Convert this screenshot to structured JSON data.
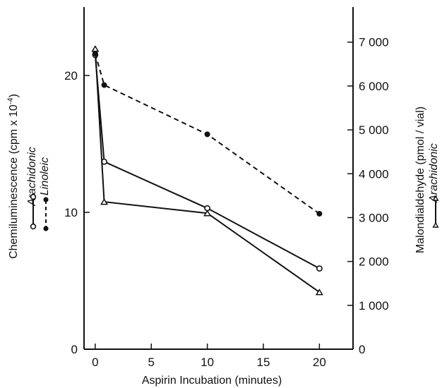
{
  "chart_data": {
    "type": "line",
    "xlabel": "Aspirin Incubation (minutes)",
    "ylabel_left": "Chemiluminescence (cpm x 10",
    "ylabel_left_exp": "-4",
    "ylabel_left_close": ")",
    "ylabel_right": "Malondialdehyde (pmol / vial)",
    "xlim": [
      -1,
      23
    ],
    "ylim_left": [
      0,
      25
    ],
    "ylim_right": [
      0,
      7800
    ],
    "x_ticks": [
      0,
      5,
      10,
      15,
      20
    ],
    "y_left_ticks": [
      0,
      10,
      20
    ],
    "y_right_ticks": [
      0,
      1000,
      2000,
      3000,
      4000,
      5000,
      6000,
      7000
    ],
    "x_tick_labels": [
      "0",
      "5",
      "10",
      "15",
      "20"
    ],
    "y_left_tick_labels": [
      "0",
      "10",
      "20"
    ],
    "y_right_tick_labels": [
      "0",
      "1 000",
      "2 000",
      "3 000",
      "4 000",
      "5 000",
      "6 000",
      "7 000"
    ],
    "series": [
      {
        "name": "Arachidonic",
        "axis": "left",
        "marker": "open-circle",
        "line": "solid",
        "x": [
          0,
          0.8,
          10,
          20
        ],
        "y": [
          21.5,
          13.7,
          10.3,
          5.9
        ]
      },
      {
        "name": "Linoleic",
        "axis": "left",
        "marker": "filled-circle",
        "line": "dashed",
        "x": [
          0,
          0.8,
          10,
          20
        ],
        "y": [
          21.6,
          19.3,
          15.7,
          9.9
        ]
      },
      {
        "name": "Arachidonic",
        "axis": "right",
        "marker": "open-triangle",
        "line": "solid",
        "x": [
          0,
          0.8,
          10,
          20
        ],
        "y": [
          6850,
          3360,
          3100,
          1300
        ]
      }
    ],
    "legend_left": [
      "Arachidonic",
      "Linoleic"
    ],
    "legend_right": [
      "Arachidonic"
    ],
    "grid": false
  }
}
